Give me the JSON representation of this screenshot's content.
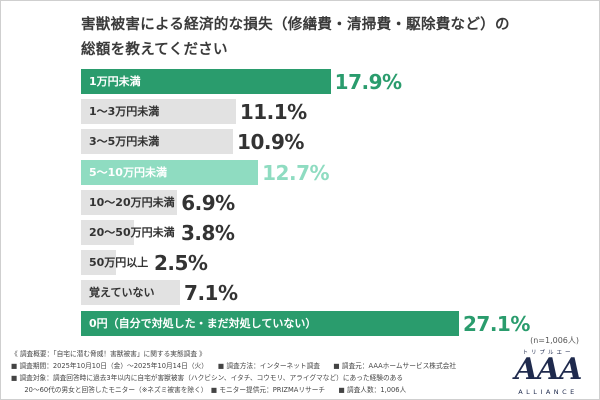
{
  "chart_data": {
    "type": "bar",
    "orientation": "horizontal",
    "title_line1": "害獣被害による経済的な損失（修繕費・清掃費・駆除費など）の",
    "title_line2": "総額を教えてください",
    "categories": [
      "1万円未満",
      "1〜3万円未満",
      "3〜5万円未満",
      "5〜10万円未満",
      "10〜20万円未満",
      "20〜50万円未満",
      "50万円以上",
      "覚えていない",
      "0円（自分で対処した・まだ対処していない）"
    ],
    "values": [
      17.9,
      11.1,
      10.9,
      12.7,
      6.9,
      3.8,
      2.5,
      7.1,
      27.1
    ],
    "value_labels": [
      "17.9%",
      "11.1%",
      "10.9%",
      "12.7%",
      "6.9%",
      "3.8%",
      "2.5%",
      "7.1%",
      "27.1%"
    ],
    "bar_colors": [
      "#2a9c6d",
      "#e2e2e2",
      "#e2e2e2",
      "#8fdcc1",
      "#e2e2e2",
      "#e2e2e2",
      "#e2e2e2",
      "#e2e2e2",
      "#2a9c6d"
    ],
    "label_colors": [
      "#ffffff",
      "#333333",
      "#333333",
      "#ffffff",
      "#333333",
      "#333333",
      "#333333",
      "#333333",
      "#ffffff"
    ],
    "value_colors": [
      "#2a9c6d",
      "#333333",
      "#333333",
      "#8fdcc1",
      "#333333",
      "#333333",
      "#333333",
      "#333333",
      "#2a9c6d"
    ],
    "sample_size": "(n=1,006人)"
  },
  "footnotes": [
    "《 調査概要：「自宅に潜む脅威！害獣被害」に関する実態調査 》",
    "■ 調査期間：2025年10月10日（金）〜2025年10月14日（火）　　■ 調査方法：インターネット調査　　■ 調査元：AAAホームサービス株式会社",
    "■ 調査対象：調査回答時に過去3年以内に自宅が害獣被害（ハクビシン、イタチ、コウモリ、アライグマなど）にあった経験のある",
    "　　20〜60代の男女と回答したモニター（※ネズミ被害を除く）　■ モニター提供元：PRIZMAリサーチ　　■ 調査人数：1,006人"
  ],
  "logo": {
    "kana": "トリプルエー",
    "mark": "AAA",
    "sub": "ALLIANCE"
  }
}
